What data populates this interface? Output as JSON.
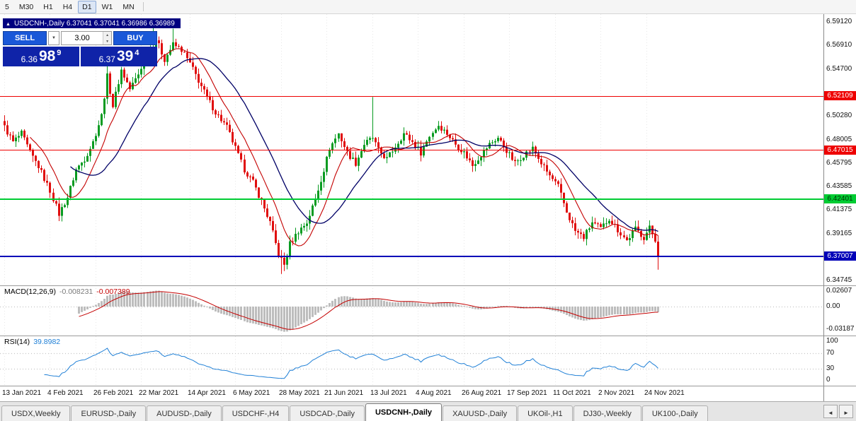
{
  "toolbar": {
    "timeframes": [
      "5",
      "M30",
      "H1",
      "H4",
      "D1",
      "W1",
      "MN"
    ],
    "active": "D1"
  },
  "chart": {
    "title_bar": "USDCNH-,Daily 6.37041 6.37041 6.36986 6.36989",
    "trade_panel": {
      "sell_label": "SELL",
      "buy_label": "BUY",
      "lot": "3.00",
      "bid": {
        "prefix": "6.36",
        "big": "98",
        "sup": "9"
      },
      "ask": {
        "prefix": "6.37",
        "big": "39",
        "sup": "4"
      }
    }
  },
  "chart_data": {
    "type": "candlestick",
    "symbol": "USDCNH-",
    "timeframe": "Daily",
    "open": "6.37041",
    "high": "6.37041",
    "low": "6.36986",
    "close": "6.36989",
    "n_candles": 230,
    "price_range": [
      6.3427,
      6.5987
    ],
    "bull_color": "#089b21",
    "bear_color": "#e00d0d",
    "y_ticks": [
      {
        "label": "6.59120",
        "value": 6.5912
      },
      {
        "label": "6.56910",
        "value": 6.5691
      },
      {
        "label": "6.54700",
        "value": 6.547
      },
      {
        "label": "6.50280",
        "value": 6.5028
      },
      {
        "label": "6.48005",
        "value": 6.48005
      },
      {
        "label": "6.45795",
        "value": 6.45795
      },
      {
        "label": "6.43585",
        "value": 6.43585
      },
      {
        "label": "6.41375",
        "value": 6.41375
      },
      {
        "label": "6.39165",
        "value": 6.39165
      },
      {
        "label": "6.34745",
        "value": 6.34745
      }
    ],
    "levels": [
      {
        "value": 6.52109,
        "label": "6.52109",
        "color": "#ee0000",
        "text": "#ffffff",
        "width": 1
      },
      {
        "value": 6.47015,
        "label": "6.47015",
        "color": "#ee0000",
        "text": "#ffffff",
        "width": 1
      },
      {
        "value": 6.42401,
        "label": "6.42401",
        "color": "#00cc33",
        "text": "#003300",
        "width": 2
      },
      {
        "value": 6.37007,
        "label": "6.37007",
        "color": "#0000b8",
        "text": "#ffffff",
        "width": 2
      }
    ],
    "x_labels": [
      {
        "label": "13 Jan 2021",
        "i": 0
      },
      {
        "label": "4 Feb 2021",
        "i": 16
      },
      {
        "label": "26 Feb 2021",
        "i": 32
      },
      {
        "label": "22 Mar 2021",
        "i": 48
      },
      {
        "label": "14 Apr 2021",
        "i": 65
      },
      {
        "label": "6 May 2021",
        "i": 81
      },
      {
        "label": "28 May 2021",
        "i": 97
      },
      {
        "label": "21 Jun 2021",
        "i": 113
      },
      {
        "label": "13 Jul 2021",
        "i": 129
      },
      {
        "label": "4 Aug 2021",
        "i": 145
      },
      {
        "label": "26 Aug 2021",
        "i": 161
      },
      {
        "label": "17 Sep 2021",
        "i": 177
      },
      {
        "label": "11 Oct 2021",
        "i": 193
      },
      {
        "label": "2 Nov 2021",
        "i": 209
      },
      {
        "label": "24 Nov 2021",
        "i": 225
      }
    ],
    "close_anchors": [
      [
        0,
        6.492
      ],
      [
        3,
        6.478
      ],
      [
        6,
        6.486
      ],
      [
        9,
        6.468
      ],
      [
        12,
        6.455
      ],
      [
        16,
        6.432
      ],
      [
        19,
        6.41
      ],
      [
        22,
        6.426
      ],
      [
        25,
        6.452
      ],
      [
        28,
        6.462
      ],
      [
        31,
        6.478
      ],
      [
        34,
        6.503
      ],
      [
        36,
        6.54
      ],
      [
        38,
        6.512
      ],
      [
        41,
        6.546
      ],
      [
        44,
        6.528
      ],
      [
        47,
        6.542
      ],
      [
        50,
        6.562
      ],
      [
        53,
        6.575
      ],
      [
        56,
        6.556
      ],
      [
        59,
        6.57
      ],
      [
        62,
        6.565
      ],
      [
        65,
        6.552
      ],
      [
        68,
        6.536
      ],
      [
        71,
        6.52
      ],
      [
        74,
        6.506
      ],
      [
        78,
        6.492
      ],
      [
        81,
        6.472
      ],
      [
        84,
        6.452
      ],
      [
        87,
        6.44
      ],
      [
        90,
        6.422
      ],
      [
        93,
        6.402
      ],
      [
        96,
        6.372
      ],
      [
        98,
        6.362
      ],
      [
        100,
        6.382
      ],
      [
        103,
        6.394
      ],
      [
        106,
        6.402
      ],
      [
        109,
        6.424
      ],
      [
        112,
        6.452
      ],
      [
        114,
        6.472
      ],
      [
        117,
        6.486
      ],
      [
        120,
        6.468
      ],
      [
        123,
        6.458
      ],
      [
        126,
        6.476
      ],
      [
        129,
        6.482
      ],
      [
        131,
        6.47
      ],
      [
        134,
        6.462
      ],
      [
        137,
        6.474
      ],
      [
        140,
        6.486
      ],
      [
        143,
        6.478
      ],
      [
        146,
        6.468
      ],
      [
        149,
        6.484
      ],
      [
        152,
        6.494
      ],
      [
        155,
        6.486
      ],
      [
        158,
        6.476
      ],
      [
        161,
        6.468
      ],
      [
        164,
        6.456
      ],
      [
        167,
        6.466
      ],
      [
        170,
        6.476
      ],
      [
        173,
        6.482
      ],
      [
        176,
        6.47
      ],
      [
        179,
        6.458
      ],
      [
        182,
        6.466
      ],
      [
        185,
        6.472
      ],
      [
        188,
        6.458
      ],
      [
        191,
        6.446
      ],
      [
        194,
        6.436
      ],
      [
        197,
        6.412
      ],
      [
        200,
        6.394
      ],
      [
        203,
        6.388
      ],
      [
        206,
        6.402
      ],
      [
        209,
        6.396
      ],
      [
        212,
        6.406
      ],
      [
        215,
        6.395
      ],
      [
        218,
        6.385
      ],
      [
        221,
        6.396
      ],
      [
        224,
        6.388
      ],
      [
        226,
        6.397
      ],
      [
        228,
        6.386
      ],
      [
        229,
        6.3699
      ]
    ],
    "spike_highs": [
      [
        36,
        6.566
      ],
      [
        52,
        6.589
      ],
      [
        59,
        6.585
      ],
      [
        129,
        6.5205
      ]
    ],
    "spike_lows": [
      [
        20,
        6.4045
      ],
      [
        97,
        6.3535
      ],
      [
        229,
        6.3575
      ]
    ],
    "noise_amplitude": 0.0028,
    "wick_amplitude": 0.006,
    "moving_averages": [
      {
        "period": 10,
        "color": "#c40000"
      },
      {
        "period": 24,
        "color": "#000066"
      }
    ],
    "macd": {
      "label": "MACD(12,26,9)",
      "value_main": "-0.008231",
      "value_signal": "-0.007389",
      "fast": 12,
      "slow": 26,
      "signal": 9,
      "histogram_color": "#bdbdbd",
      "signal_color": "#c40000",
      "ticks": [
        {
          "label": "0.02607",
          "value": 0.02607
        },
        {
          "label": "0.00",
          "value": 0
        },
        {
          "label": "-0.03187",
          "value": -0.03187
        }
      ]
    },
    "rsi": {
      "label": "RSI(14)",
      "value": "39.8982",
      "period": 14,
      "line_color": "#1e7fd6",
      "levels": [
        70,
        30
      ],
      "ticks": [
        {
          "label": "100",
          "value": 100
        },
        {
          "label": "70",
          "value": 70
        },
        {
          "label": "30",
          "value": 30
        },
        {
          "label": "0",
          "value": 0
        }
      ]
    }
  },
  "tabs": {
    "items": [
      "USDX,Weekly",
      "EURUSD-,Daily",
      "AUDUSD-,Daily",
      "USDCHF-,H4",
      "USDCAD-,Daily",
      "USDCNH-,Daily",
      "XAUUSD-,Daily",
      "UKOil-,H1",
      "DJ30-,Weekly",
      "UK100-,Daily"
    ],
    "active_index": 5
  },
  "colors": {
    "title_bar": "#000080",
    "trade_button": "#1a58d8",
    "price_display": "#0f23a8",
    "axis_text": "#111111"
  }
}
